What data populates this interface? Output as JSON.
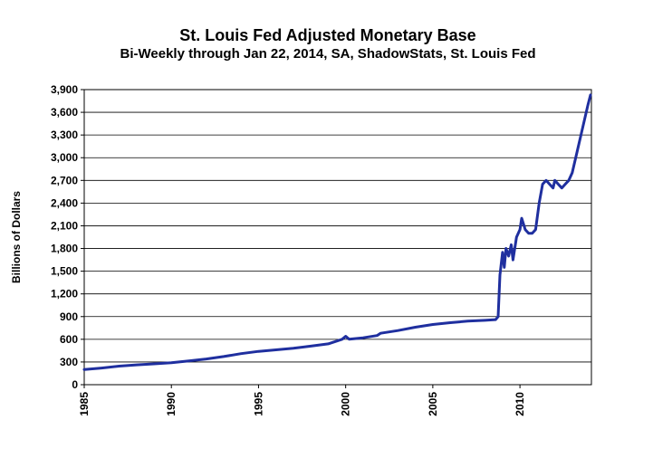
{
  "chart_data": {
    "type": "line",
    "title": "St. Louis Fed Adjusted Monetary Base",
    "subtitle": "Bi-Weekly through Jan 22, 2014, SA, ShadowStats, St. Louis Fed",
    "ylabel": "Billions of Dollars",
    "xlabel": "",
    "ylim": [
      0,
      3900
    ],
    "xlim": [
      1985,
      2014.1
    ],
    "y_ticks": [
      0,
      300,
      600,
      900,
      1200,
      1500,
      1800,
      2100,
      2400,
      2700,
      3000,
      3300,
      3600,
      3900
    ],
    "y_tick_labels": [
      "0",
      "300",
      "600",
      "900",
      "1,200",
      "1,500",
      "1,800",
      "2,100",
      "2,400",
      "2,700",
      "3,000",
      "3,300",
      "3,600",
      "3,900"
    ],
    "x_tick_labels": [
      "1985",
      "1990",
      "1995",
      "2000",
      "2005",
      "2010"
    ],
    "grid": "horizontal",
    "series_color": "#1f2f9f",
    "series": [
      {
        "values": [
          [
            1985.0,
            200
          ],
          [
            1986.0,
            220
          ],
          [
            1987.0,
            245
          ],
          [
            1988.0,
            262
          ],
          [
            1989.0,
            275
          ],
          [
            1990.0,
            290
          ],
          [
            1991.0,
            315
          ],
          [
            1992.0,
            340
          ],
          [
            1993.0,
            372
          ],
          [
            1994.0,
            410
          ],
          [
            1995.0,
            440
          ],
          [
            1996.0,
            460
          ],
          [
            1997.0,
            482
          ],
          [
            1998.0,
            510
          ],
          [
            1999.0,
            540
          ],
          [
            1999.8,
            600
          ],
          [
            2000.0,
            640
          ],
          [
            2000.2,
            600
          ],
          [
            2001.0,
            620
          ],
          [
            2001.8,
            650
          ],
          [
            2002.0,
            680
          ],
          [
            2003.0,
            715
          ],
          [
            2004.0,
            760
          ],
          [
            2005.0,
            795
          ],
          [
            2006.0,
            820
          ],
          [
            2007.0,
            840
          ],
          [
            2008.0,
            850
          ],
          [
            2008.6,
            860
          ],
          [
            2008.75,
            900
          ],
          [
            2008.85,
            1450
          ],
          [
            2009.0,
            1750
          ],
          [
            2009.1,
            1550
          ],
          [
            2009.2,
            1800
          ],
          [
            2009.35,
            1700
          ],
          [
            2009.5,
            1850
          ],
          [
            2009.6,
            1650
          ],
          [
            2009.8,
            1950
          ],
          [
            2010.0,
            2050
          ],
          [
            2010.1,
            2200
          ],
          [
            2010.3,
            2050
          ],
          [
            2010.5,
            2000
          ],
          [
            2010.7,
            2000
          ],
          [
            2010.9,
            2050
          ],
          [
            2011.1,
            2400
          ],
          [
            2011.3,
            2650
          ],
          [
            2011.5,
            2700
          ],
          [
            2011.7,
            2650
          ],
          [
            2011.9,
            2600
          ],
          [
            2012.0,
            2700
          ],
          [
            2012.2,
            2650
          ],
          [
            2012.4,
            2600
          ],
          [
            2012.6,
            2650
          ],
          [
            2012.8,
            2700
          ],
          [
            2013.0,
            2800
          ],
          [
            2013.3,
            3100
          ],
          [
            2013.6,
            3400
          ],
          [
            2013.9,
            3700
          ],
          [
            2014.05,
            3830
          ]
        ]
      }
    ]
  }
}
